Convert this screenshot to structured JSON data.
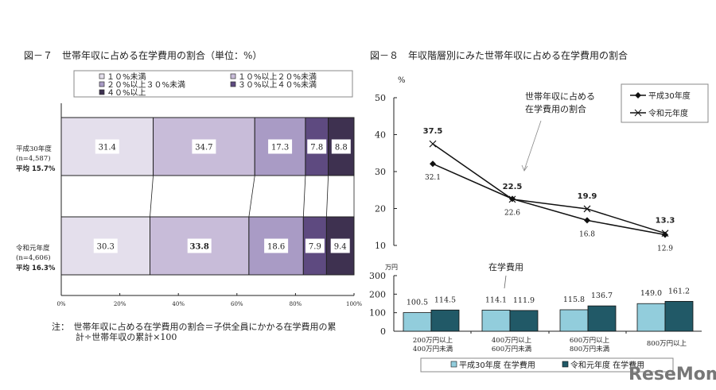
{
  "chart_data": [
    {
      "type": "bar",
      "stacked": true,
      "orientation": "horizontal",
      "title": "図－７　世帯年収に占める在学費用の割合（単位：%）",
      "categories": [
        "平成30年度",
        "令和元年度"
      ],
      "category_notes": [
        "(n=4,587)",
        "(n=4,606)"
      ],
      "category_averages": [
        "平均 15.7%",
        "平均 16.3%"
      ],
      "series": [
        {
          "name": "１０%未満",
          "values": [
            31.4,
            30.3
          ],
          "color": "#e4dfec"
        },
        {
          "name": "１０%以上２０%未満",
          "values": [
            34.7,
            33.8
          ],
          "color": "#c8bcd9"
        },
        {
          "name": "２０%以上３０%未満",
          "values": [
            17.3,
            18.6
          ],
          "color": "#a99bc5"
        },
        {
          "name": "３０%以上４０%未満",
          "values": [
            7.8,
            7.9
          ],
          "color": "#5e4a80"
        },
        {
          "name": "４０%以上",
          "values": [
            8.8,
            9.4
          ],
          "color": "#3e3150"
        }
      ],
      "xlim": [
        0,
        100
      ],
      "xticks": [
        "0%",
        "20%",
        "40%",
        "60%",
        "80%",
        "100%"
      ],
      "legend": "top",
      "note": [
        "注：　世帯年収に占める在学費用の割合＝子供全員にかかる在学費用の累",
        "計÷世帯年収の累計×100"
      ]
    },
    {
      "type": "line",
      "title": "図－８　年収階層別にみた世帯年収に占める在学費用の割合",
      "ylabel": "%",
      "ylim": [
        10,
        50
      ],
      "yticks": [
        10,
        20,
        30,
        40,
        50
      ],
      "categories": [
        "200万円以上400万円未満",
        "400万円以上600万円未満",
        "600万円以上800万円未満",
        "800万円以上"
      ],
      "series": [
        {
          "name": "平成30年度",
          "values": [
            32.1,
            22.6,
            16.8,
            12.9
          ],
          "labels": [
            "32.1",
            "22.6",
            "16.8",
            "12.9"
          ],
          "marker": "diamond"
        },
        {
          "name": "令和元年度",
          "values": [
            37.5,
            22.5,
            19.9,
            13.3
          ],
          "labels": [
            "37.5",
            "22.5",
            "19.9",
            "13.3"
          ],
          "marker": "x"
        }
      ],
      "annotation": [
        "世帯年収に占める",
        "在学費用の割合"
      ],
      "legend": "top-right"
    },
    {
      "type": "bar",
      "ylabel": "万円",
      "ylim": [
        0,
        300
      ],
      "yticks": [
        0,
        100,
        200,
        300
      ],
      "categories": [
        [
          "200万円以上",
          "400万円未満"
        ],
        [
          "400万円以上",
          "600万円未満"
        ],
        [
          "600万円以上",
          "800万円未満"
        ],
        [
          "800万円以上"
        ]
      ],
      "series": [
        {
          "name": "平成30年度 在学費用",
          "values": [
            100.5,
            114.1,
            115.8,
            149.0
          ],
          "labels": [
            "100.5",
            "114.1",
            "115.8",
            "149.0"
          ],
          "color": "#92cddc"
        },
        {
          "name": "令和元年度 在学費用",
          "values": [
            114.5,
            111.9,
            136.7,
            161.2
          ],
          "labels": [
            "114.5",
            "111.9",
            "136.7",
            "161.2"
          ],
          "color": "#215967"
        }
      ],
      "annotation": "在学費用",
      "legend": "bottom"
    }
  ],
  "watermark": "ReseMom"
}
